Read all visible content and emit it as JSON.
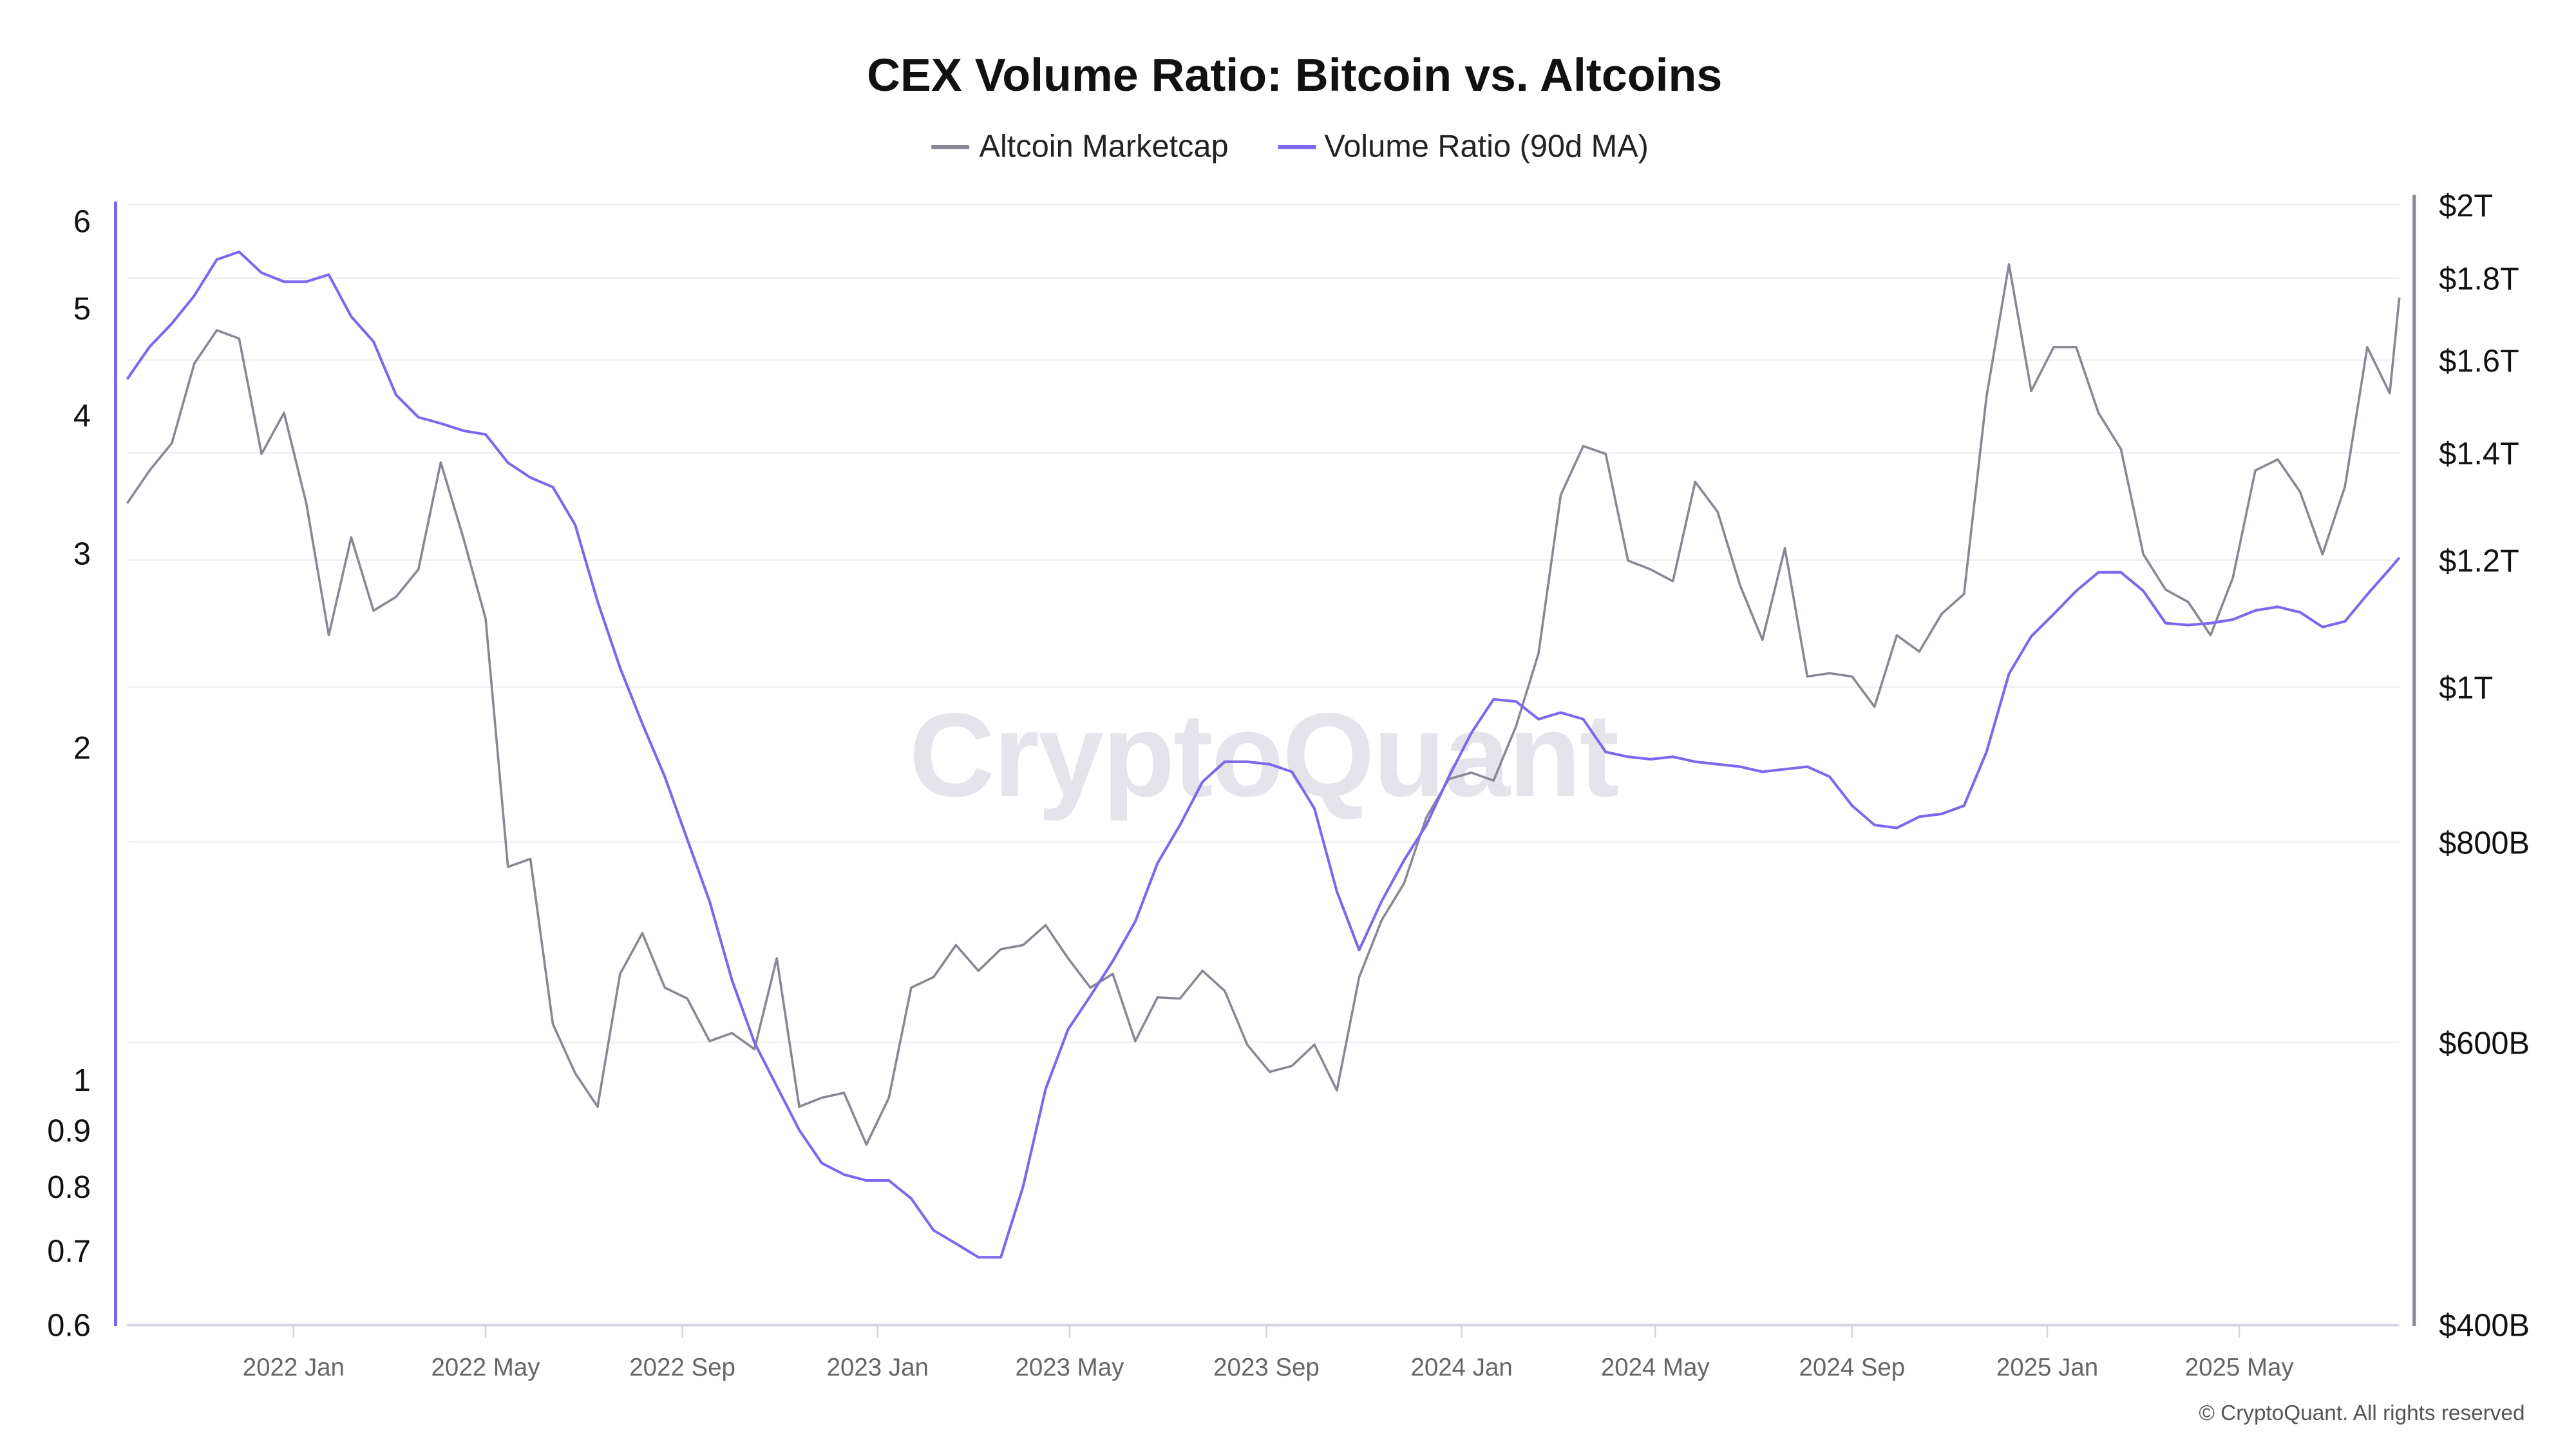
{
  "chart_data": {
    "type": "line",
    "title": "CEX Volume Ratio: Bitcoin vs. Altcoins",
    "legend_position": "top",
    "grid": true,
    "watermark": "CryptoQuant",
    "credit": "© CryptoQuant. All rights reserved",
    "x_axis": {
      "type": "date",
      "range": [
        "2021-09-19",
        "2025-08-09"
      ],
      "ticks": [
        {
          "date": "2022-01-01",
          "label": "2022 Jan"
        },
        {
          "date": "2022-05-01",
          "label": "2022 May"
        },
        {
          "date": "2022-09-01",
          "label": "2022 Sep"
        },
        {
          "date": "2023-01-01",
          "label": "2023 Jan"
        },
        {
          "date": "2023-05-01",
          "label": "2023 May"
        },
        {
          "date": "2023-09-01",
          "label": "2023 Sep"
        },
        {
          "date": "2024-01-01",
          "label": "2024 Jan"
        },
        {
          "date": "2024-05-01",
          "label": "2024 May"
        },
        {
          "date": "2024-09-01",
          "label": "2024 Sep"
        },
        {
          "date": "2025-01-01",
          "label": "2025 Jan"
        },
        {
          "date": "2025-05-01",
          "label": "2025 May"
        }
      ]
    },
    "y_left": {
      "scale": "log",
      "range": [
        0.6,
        6.2
      ],
      "color": "#7b68ee",
      "ticks": [
        {
          "value": 0.6,
          "label": "0.6"
        },
        {
          "value": 0.7,
          "label": "0.7"
        },
        {
          "value": 0.8,
          "label": "0.8"
        },
        {
          "value": 0.9,
          "label": "0.9"
        },
        {
          "value": 1,
          "label": "1"
        },
        {
          "value": 2,
          "label": "2"
        },
        {
          "value": 3,
          "label": "3"
        },
        {
          "value": 4,
          "label": "4"
        },
        {
          "value": 5,
          "label": "5"
        },
        {
          "value": 6,
          "label": "6"
        }
      ]
    },
    "y_right": {
      "scale": "log",
      "unit": "billion USD",
      "range": [
        400,
        2000
      ],
      "color": "#8a8794",
      "ticks": [
        {
          "value": 400,
          "label": "$400B"
        },
        {
          "value": 600,
          "label": "$600B"
        },
        {
          "value": 800,
          "label": "$800B"
        },
        {
          "value": 1000,
          "label": "$1T"
        },
        {
          "value": 1200,
          "label": "$1.2T"
        },
        {
          "value": 1400,
          "label": "$1.4T"
        },
        {
          "value": 1600,
          "label": "$1.6T"
        },
        {
          "value": 1800,
          "label": "$1.8T"
        },
        {
          "value": 2000,
          "label": "$2T"
        }
      ]
    },
    "x": [
      "2021-09-19",
      "2021-10-03",
      "2021-10-17",
      "2021-10-31",
      "2021-11-14",
      "2021-11-28",
      "2021-12-12",
      "2021-12-26",
      "2022-01-09",
      "2022-01-23",
      "2022-02-06",
      "2022-02-20",
      "2022-03-06",
      "2022-03-20",
      "2022-04-03",
      "2022-04-17",
      "2022-05-01",
      "2022-05-15",
      "2022-05-29",
      "2022-06-12",
      "2022-06-26",
      "2022-07-10",
      "2022-07-24",
      "2022-08-07",
      "2022-08-21",
      "2022-09-04",
      "2022-09-18",
      "2022-10-02",
      "2022-10-16",
      "2022-10-30",
      "2022-11-13",
      "2022-11-27",
      "2022-12-11",
      "2022-12-25",
      "2023-01-08",
      "2023-01-22",
      "2023-02-05",
      "2023-02-19",
      "2023-03-05",
      "2023-03-19",
      "2023-04-02",
      "2023-04-16",
      "2023-04-30",
      "2023-05-14",
      "2023-05-28",
      "2023-06-11",
      "2023-06-25",
      "2023-07-09",
      "2023-07-23",
      "2023-08-06",
      "2023-08-20",
      "2023-09-03",
      "2023-09-17",
      "2023-10-01",
      "2023-10-15",
      "2023-10-29",
      "2023-11-12",
      "2023-11-26",
      "2023-12-10",
      "2023-12-24",
      "2024-01-07",
      "2024-01-21",
      "2024-02-04",
      "2024-02-18",
      "2024-03-03",
      "2024-03-17",
      "2024-03-31",
      "2024-04-14",
      "2024-04-28",
      "2024-05-12",
      "2024-05-26",
      "2024-06-09",
      "2024-06-23",
      "2024-07-07",
      "2024-07-21",
      "2024-08-04",
      "2024-08-18",
      "2024-09-01",
      "2024-09-15",
      "2024-09-29",
      "2024-10-13",
      "2024-10-27",
      "2024-11-10",
      "2024-11-24",
      "2024-12-08",
      "2024-12-22",
      "2025-01-05",
      "2025-01-19",
      "2025-02-02",
      "2025-02-16",
      "2025-03-02",
      "2025-03-16",
      "2025-03-30",
      "2025-04-13",
      "2025-04-27",
      "2025-05-11",
      "2025-05-25",
      "2025-06-08",
      "2025-06-22",
      "2025-07-06",
      "2025-07-20",
      "2025-08-03",
      "2025-08-09"
    ],
    "series": [
      {
        "name": "Altcoin Marketcap",
        "axis": "right",
        "color": "#8a8794",
        "values": [
          1302,
          1365,
          1420,
          1592,
          1670,
          1650,
          1398,
          1483,
          1302,
          1077,
          1240,
          1116,
          1138,
          1184,
          1381,
          1240,
          1103,
          772,
          781,
          616,
          574,
          547,
          662,
          702,
          649,
          639,
          601,
          608,
          594,
          677,
          547,
          554,
          558,
          518,
          554,
          649,
          659,
          690,
          665,
          686,
          690,
          710,
          677,
          649,
          662,
          601,
          640,
          639,
          665,
          646,
          598,
          575,
          580,
          598,
          560,
          659,
          715,
          754,
          829,
          876,
          884,
          874,
          945,
          1049,
          1318,
          1414,
          1398,
          1199,
          1184,
          1164,
          1343,
          1286,
          1157,
          1070,
          1221,
          1015,
          1020,
          1015,
          972,
          1077,
          1052,
          1111,
          1143,
          1518,
          1836,
          1530,
          1630,
          1630,
          1483,
          1408,
          1210,
          1150,
          1130,
          1077,
          1170,
          1365,
          1387,
          1324,
          1210,
          1334,
          1630,
          1525,
          1750
        ]
      },
      {
        "name": "Volume Ratio (90d MA)",
        "axis": "left",
        "color": "#7b68ee",
        "values": [
          4.31,
          4.61,
          4.84,
          5.13,
          5.53,
          5.62,
          5.38,
          5.28,
          5.28,
          5.36,
          4.91,
          4.66,
          4.17,
          3.98,
          3.93,
          3.87,
          3.84,
          3.62,
          3.51,
          3.44,
          3.18,
          2.71,
          2.36,
          2.1,
          1.88,
          1.65,
          1.45,
          1.23,
          1.08,
          0.986,
          0.9,
          0.84,
          0.82,
          0.81,
          0.81,
          0.78,
          0.73,
          0.71,
          0.69,
          0.69,
          0.8,
          0.98,
          1.11,
          1.19,
          1.28,
          1.39,
          1.57,
          1.7,
          1.86,
          1.94,
          1.94,
          1.93,
          1.9,
          1.76,
          1.48,
          1.31,
          1.45,
          1.58,
          1.7,
          1.88,
          2.06,
          2.21,
          2.2,
          2.12,
          2.15,
          2.12,
          1.98,
          1.96,
          1.95,
          1.96,
          1.94,
          1.93,
          1.92,
          1.9,
          1.91,
          1.92,
          1.88,
          1.77,
          1.7,
          1.69,
          1.73,
          1.74,
          1.77,
          1.98,
          2.33,
          2.52,
          2.64,
          2.77,
          2.88,
          2.88,
          2.77,
          2.59,
          2.58,
          2.59,
          2.61,
          2.66,
          2.68,
          2.65,
          2.57,
          2.6,
          2.75,
          2.9,
          2.97
        ]
      }
    ]
  }
}
